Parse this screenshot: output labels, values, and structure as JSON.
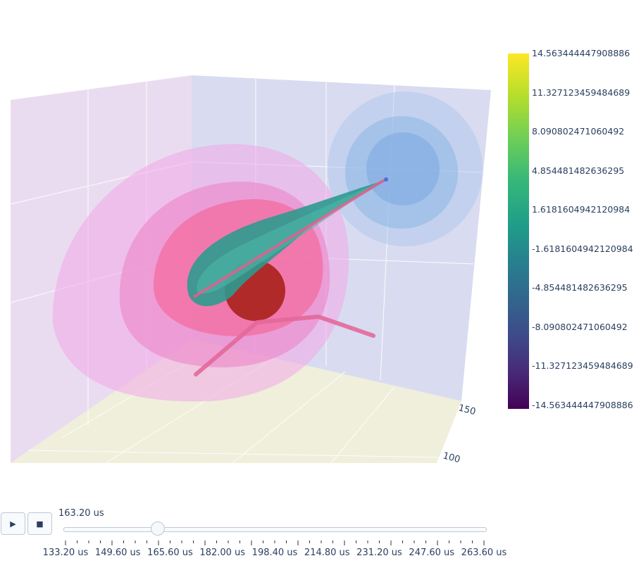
{
  "chart_data": {
    "type": "scatter",
    "title": "",
    "axis_tick_labels": [
      "150",
      "100"
    ],
    "colorbar": {
      "colorscale": "Viridis",
      "colors": [
        "#fde725",
        "#b5de2b",
        "#6ece58",
        "#35b779",
        "#1f9e89",
        "#26828e",
        "#31688e",
        "#3e4989",
        "#482878",
        "#440154"
      ],
      "ticks": [
        "14.563444447908886",
        "11.327123459484689",
        "8.090802471060492",
        "4.854481482636295",
        "1.6181604942120984",
        "-1.6181604942120984",
        "-4.854481482636295",
        "-8.090802471060492",
        "-11.327123459484689",
        "-14.563444447908886"
      ]
    }
  },
  "animation": {
    "play_icon": "play-icon",
    "stop_icon": "stop-icon",
    "current_value": "163.20 us",
    "steps": [
      "133.20 us",
      "149.60 us",
      "165.60 us",
      "182.00 us",
      "198.40 us",
      "214.80 us",
      "231.20 us",
      "247.60 us",
      "263.60 us"
    ],
    "current_fraction": 0.22
  }
}
